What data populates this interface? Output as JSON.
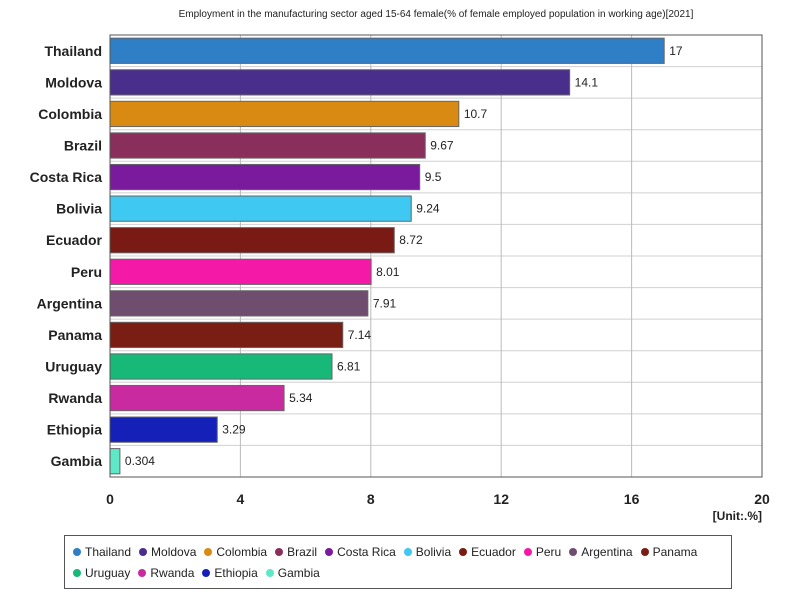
{
  "chart_data": {
    "type": "bar",
    "orientation": "horizontal",
    "title": "Employment in the manufacturing sector aged 15-64 female(% of female employed population in working age)[2021]",
    "unit_label": "[Unit:.%]",
    "xlim": [
      0,
      20
    ],
    "xticks": [
      0,
      4,
      8,
      12,
      16,
      20
    ],
    "grid": true,
    "legend_position": "bottom",
    "categories": [
      "Thailand",
      "Moldova",
      "Colombia",
      "Brazil",
      "Costa Rica",
      "Bolivia",
      "Ecuador",
      "Peru",
      "Argentina",
      "Panama",
      "Uruguay",
      "Rwanda",
      "Ethiopia",
      "Gambia"
    ],
    "values": [
      17,
      14.1,
      10.7,
      9.67,
      9.5,
      9.24,
      8.72,
      8.01,
      7.91,
      7.14,
      6.81,
      5.34,
      3.29,
      0.304
    ],
    "value_labels": [
      "17",
      "14.1",
      "10.7",
      "9.67",
      "9.5",
      "9.24",
      "8.72",
      "8.01",
      "7.91",
      "7.14",
      "6.81",
      "5.34",
      "3.29",
      "0.304"
    ],
    "colors": [
      "#2e7fc6",
      "#4a2e8c",
      "#d98a12",
      "#8a2f5c",
      "#7a1a9c",
      "#3ec8f2",
      "#7a1a14",
      "#f519a8",
      "#6e4d6e",
      "#7a1e14",
      "#17b878",
      "#c92aa0",
      "#1420b8",
      "#5ee8c8"
    ]
  }
}
